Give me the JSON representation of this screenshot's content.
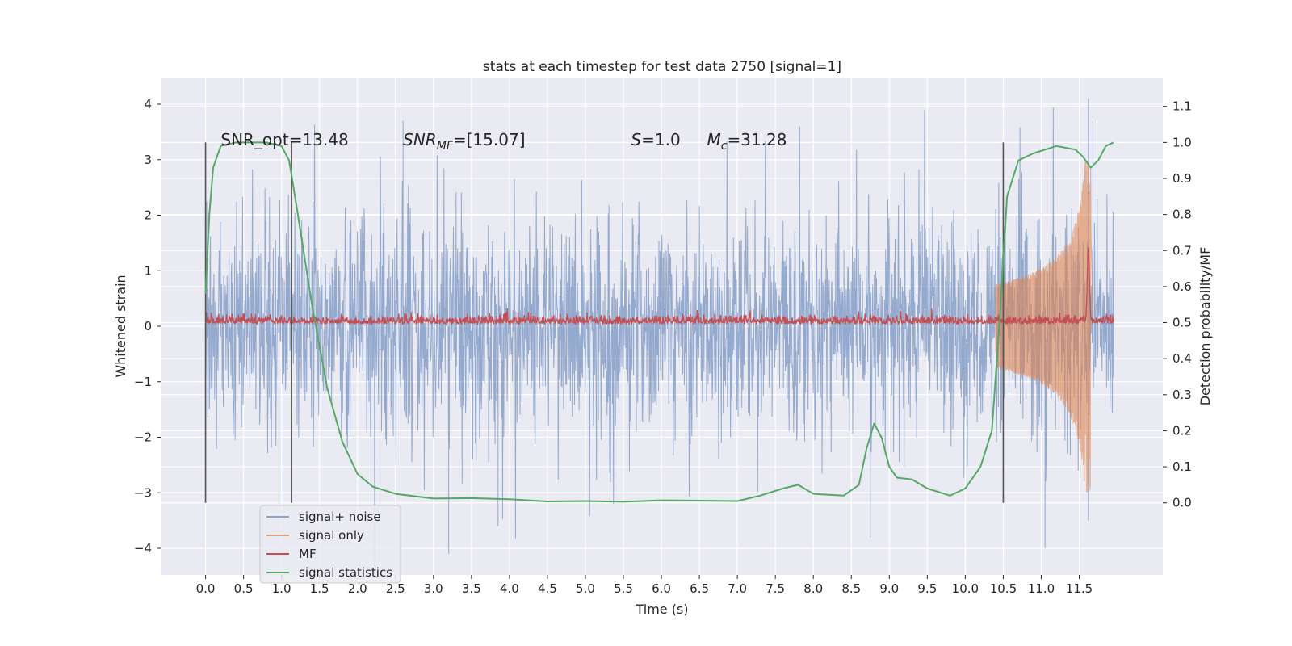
{
  "chart_data": {
    "type": "line",
    "title": "stats at each timestep for test data 2750 [signal=1]",
    "xlabel": "Time (s)",
    "ylabel_left": "Whitened strain",
    "ylabel_right": "Detection probability/MF",
    "xlim": [
      -0.58,
      12.6
    ],
    "ylim_left": [
      -4.48,
      4.48
    ],
    "ylim_right": [
      -0.2,
      1.18
    ],
    "x_ticks": [
      "0.0",
      "0.5",
      "1.0",
      "1.5",
      "2.0",
      "2.5",
      "3.0",
      "3.5",
      "4.0",
      "4.5",
      "5.0",
      "5.5",
      "6.0",
      "6.5",
      "7.0",
      "7.5",
      "8.0",
      "8.5",
      "9.0",
      "9.5",
      "10.0",
      "10.5",
      "11.0",
      "11.5"
    ],
    "y_ticks_left": [
      "−4",
      "−3",
      "−2",
      "−1",
      "0",
      "1",
      "2",
      "3",
      "4"
    ],
    "y_ticks_right": [
      "0.0",
      "0.1",
      "0.2",
      "0.3",
      "0.4",
      "0.5",
      "0.6",
      "0.7",
      "0.8",
      "0.9",
      "1.0",
      "1.1"
    ],
    "grid": true,
    "legend_position": "lower-left",
    "annotations": [
      {
        "text": "SNR_opt=13.48",
        "x": 0.2
      },
      {
        "text": "SNR",
        "sub": "MF",
        "suffix": "=[15.07]",
        "x": 2.6,
        "italic": true
      },
      {
        "text": "S",
        "suffix": "=1.0",
        "x": 5.6,
        "italic": true
      },
      {
        "text": "M",
        "sub": "c",
        "suffix": "=31.28",
        "x": 6.6,
        "italic": true
      }
    ],
    "vlines_x": [
      0.0,
      1.13,
      10.5
    ],
    "series": [
      {
        "name": "signal+ noise",
        "color": "#4c72b0",
        "axis": "left",
        "kind": "noise",
        "amplitude_sd": 0.95,
        "x_range": [
          0.0,
          11.95
        ],
        "notable_spikes": [
          [
            0.0,
            -2.2
          ],
          [
            1.02,
            -3.2
          ],
          [
            2.6,
            3.7
          ],
          [
            3.2,
            -4.1
          ],
          [
            3.85,
            -3.6
          ],
          [
            8.75,
            -3.8
          ],
          [
            11.05,
            -4.0
          ],
          [
            11.62,
            4.1
          ],
          [
            11.62,
            -3.5
          ],
          [
            11.68,
            3.7
          ]
        ]
      },
      {
        "name": "signal only",
        "color": "#dd8452",
        "axis": "left",
        "kind": "chirp",
        "x_range": [
          10.4,
          11.68
        ],
        "peak_amplitude": 3.0,
        "peak_x": 11.65
      },
      {
        "name": "MF",
        "color": "#c44e52",
        "axis": "right",
        "kind": "noise_band",
        "x_range": [
          0.0,
          11.95
        ],
        "center": 0.5,
        "band_sd": 0.008,
        "peak": {
          "x": 11.62,
          "y": 0.71
        }
      },
      {
        "name": "signal statistics",
        "color": "#55a868",
        "axis": "right",
        "kind": "line",
        "x": [
          0.0,
          0.05,
          0.1,
          0.2,
          0.4,
          0.8,
          1.0,
          1.1,
          1.2,
          1.4,
          1.6,
          1.8,
          2.0,
          2.2,
          2.5,
          3.0,
          3.5,
          4.0,
          4.5,
          5.0,
          5.5,
          6.0,
          6.5,
          7.0,
          7.3,
          7.6,
          7.8,
          8.0,
          8.4,
          8.6,
          8.7,
          8.8,
          8.9,
          9.0,
          9.1,
          9.3,
          9.5,
          9.8,
          10.0,
          10.2,
          10.35,
          10.45,
          10.55,
          10.7,
          10.9,
          11.2,
          11.45,
          11.55,
          11.65,
          11.75,
          11.85,
          11.95
        ],
        "y": [
          0.58,
          0.8,
          0.93,
          0.99,
          1.0,
          1.0,
          0.99,
          0.95,
          0.82,
          0.55,
          0.32,
          0.17,
          0.08,
          0.045,
          0.025,
          0.012,
          0.013,
          0.01,
          0.004,
          0.005,
          0.003,
          0.007,
          0.006,
          0.005,
          0.02,
          0.04,
          0.05,
          0.025,
          0.02,
          0.05,
          0.15,
          0.22,
          0.18,
          0.1,
          0.07,
          0.065,
          0.04,
          0.02,
          0.04,
          0.1,
          0.2,
          0.5,
          0.85,
          0.95,
          0.97,
          0.99,
          0.98,
          0.96,
          0.93,
          0.95,
          0.99,
          1.0
        ]
      }
    ]
  }
}
